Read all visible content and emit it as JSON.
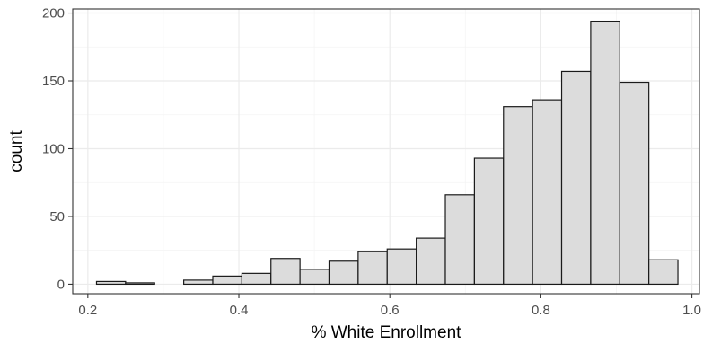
{
  "chart_data": {
    "type": "bar",
    "title": "",
    "xlabel": "% White Enrollment",
    "ylabel": "count",
    "bin_width": 0.0385,
    "bins": [
      {
        "x0": 0.2115,
        "x1": 0.25,
        "count": 2
      },
      {
        "x0": 0.25,
        "x1": 0.2885,
        "count": 1
      },
      {
        "x0": 0.2885,
        "x1": 0.327,
        "count": 0
      },
      {
        "x0": 0.327,
        "x1": 0.3655,
        "count": 3
      },
      {
        "x0": 0.3655,
        "x1": 0.404,
        "count": 6
      },
      {
        "x0": 0.404,
        "x1": 0.4425,
        "count": 8
      },
      {
        "x0": 0.4425,
        "x1": 0.481,
        "count": 19
      },
      {
        "x0": 0.481,
        "x1": 0.5195,
        "count": 11
      },
      {
        "x0": 0.5195,
        "x1": 0.558,
        "count": 17
      },
      {
        "x0": 0.558,
        "x1": 0.5965,
        "count": 24
      },
      {
        "x0": 0.5965,
        "x1": 0.635,
        "count": 26
      },
      {
        "x0": 0.635,
        "x1": 0.6735,
        "count": 34
      },
      {
        "x0": 0.6735,
        "x1": 0.712,
        "count": 66
      },
      {
        "x0": 0.712,
        "x1": 0.7505,
        "count": 93
      },
      {
        "x0": 0.7505,
        "x1": 0.789,
        "count": 131
      },
      {
        "x0": 0.789,
        "x1": 0.8275,
        "count": 136
      },
      {
        "x0": 0.8275,
        "x1": 0.866,
        "count": 157
      },
      {
        "x0": 0.866,
        "x1": 0.9045,
        "count": 194
      },
      {
        "x0": 0.9045,
        "x1": 0.943,
        "count": 149
      },
      {
        "x0": 0.943,
        "x1": 0.9815,
        "count": 18
      }
    ],
    "xlim": [
      0.18,
      1.01
    ],
    "ylim": [
      -7,
      203
    ],
    "x_ticks": [
      0.2,
      0.4,
      0.6,
      0.8,
      1.0
    ],
    "x_tick_labels": [
      "0.2",
      "0.4",
      "0.6",
      "0.8",
      "1.0"
    ],
    "y_ticks": [
      0,
      50,
      100,
      150,
      200
    ],
    "y_tick_labels": [
      "0",
      "50",
      "100",
      "150",
      "200"
    ],
    "grid": true,
    "legend": "none"
  }
}
